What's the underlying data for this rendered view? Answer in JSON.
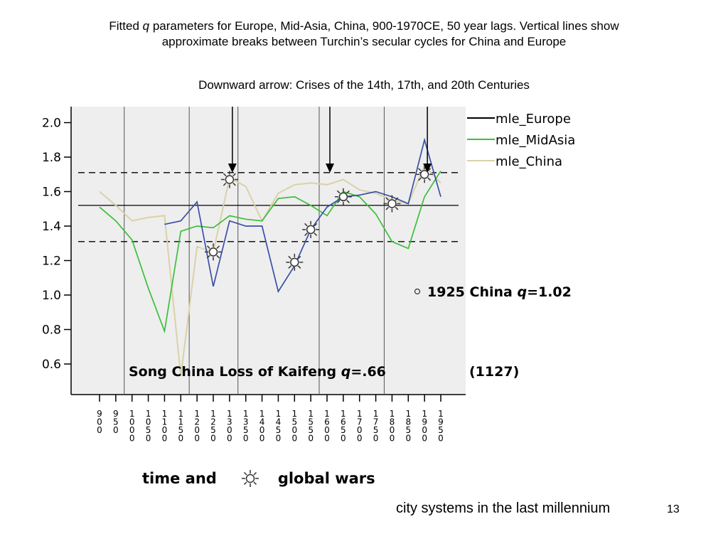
{
  "title": {
    "line1_pre": "Fitted ",
    "line1_q": "q",
    "line1_post": " parameters for Europe, Mid-Asia, China, 900-1970CE, 50 year lags. Vertical lines show",
    "line2": "approximate breaks between Turchin’s secular cycles for China and Europe"
  },
  "subtitle": "Downward arrow: Crises of the 14th, 17th, and 20th Centuries",
  "footer": {
    "time_label": "time and",
    "wars_label": "global wars",
    "caption": "city systems in the last millennium",
    "slide_number": "13"
  },
  "chart_data": {
    "type": "line",
    "ylim": [
      0.5,
      2.1
    ],
    "yticks": [
      "0.6",
      "0.8",
      "1.0",
      "1.2",
      "1.4",
      "1.6",
      "1.8",
      "2.0"
    ],
    "x": [
      900,
      950,
      1000,
      1050,
      1100,
      1150,
      1200,
      1250,
      1300,
      1350,
      1400,
      1450,
      1500,
      1550,
      1600,
      1650,
      1700,
      1750,
      1800,
      1850,
      1900,
      1950
    ],
    "series": [
      {
        "name": "mle_Europe",
        "color": "#3b4fa8",
        "values": [
          null,
          null,
          null,
          null,
          1.41,
          1.43,
          1.54,
          1.05,
          1.43,
          1.4,
          1.4,
          1.02,
          1.17,
          1.38,
          1.51,
          1.57,
          1.58,
          1.6,
          1.57,
          1.53,
          1.9,
          1.57
        ]
      },
      {
        "name": "mle_MidAsia",
        "color": "#3bbf3b",
        "values": [
          1.51,
          1.43,
          1.32,
          1.04,
          0.79,
          1.37,
          1.4,
          1.39,
          1.46,
          1.44,
          1.43,
          1.56,
          1.57,
          1.52,
          1.46,
          1.6,
          1.57,
          1.47,
          1.31,
          1.27,
          1.57,
          1.72
        ]
      },
      {
        "name": "mle_China",
        "color": "#d9d2a8",
        "values": [
          1.6,
          1.52,
          1.43,
          1.45,
          1.46,
          0.53,
          1.28,
          1.25,
          1.68,
          1.63,
          1.43,
          1.59,
          1.64,
          1.65,
          1.64,
          1.67,
          1.61,
          1.59,
          1.55,
          1.53,
          1.75,
          1.65
        ]
      }
    ],
    "reference_lines": [
      1.71,
      1.52,
      1.31
    ],
    "cycle_breaks": [
      1000,
      1200,
      1350,
      1600,
      1800
    ],
    "crisis_arrows": [
      1300,
      1600,
      1900
    ],
    "war_markers": [
      {
        "x": 1300,
        "y": 1.67
      },
      {
        "x": 1250,
        "y": 1.25
      },
      {
        "x": 1500,
        "y": 1.19
      },
      {
        "x": 1550,
        "y": 1.38
      },
      {
        "x": 1650,
        "y": 1.57
      },
      {
        "x": 1800,
        "y": 1.53
      },
      {
        "x": 1900,
        "y": 1.7
      }
    ],
    "annotations": [
      {
        "text_pre": "1925 China ",
        "q": "q",
        "text_post": "=1.02",
        "marker": "o"
      },
      {
        "text_pre": "Song China Loss of Kaifeng ",
        "q": "q",
        "text_post": "=.66",
        "year": "(1127)"
      }
    ]
  }
}
